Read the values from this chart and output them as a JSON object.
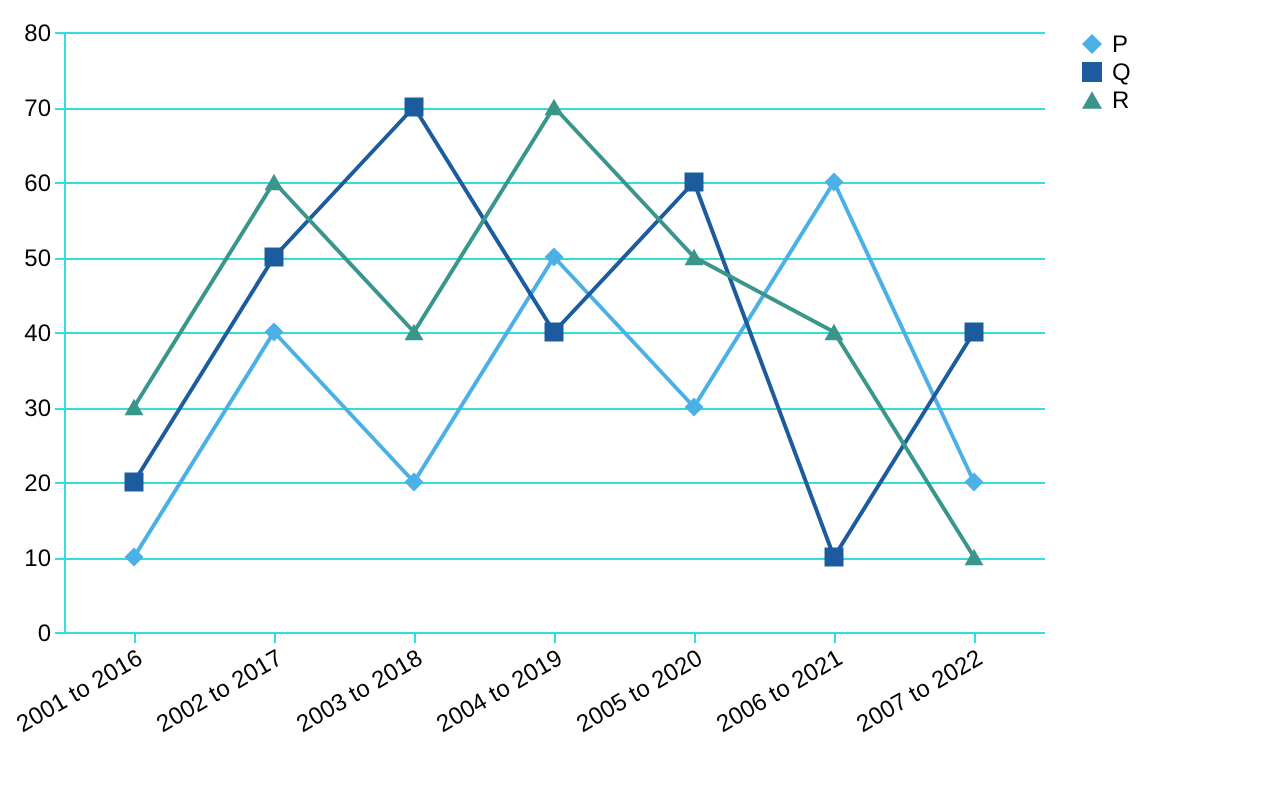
{
  "chart_data": {
    "type": "line",
    "categories": [
      "2001 to 2016",
      "2002 to 2017",
      "2003 to 2018",
      "2004 to 2019",
      "2005 to 2020",
      "2006 to 2021",
      "2007 to 2022"
    ],
    "series": [
      {
        "name": "P",
        "color": "#4bb0e6",
        "marker": "diamond",
        "values": [
          10,
          40,
          20,
          50,
          30,
          60,
          20
        ]
      },
      {
        "name": "Q",
        "color": "#1c5c9e",
        "marker": "square",
        "values": [
          20,
          50,
          70,
          40,
          60,
          10,
          40
        ]
      },
      {
        "name": "R",
        "color": "#3a968a",
        "marker": "triangle",
        "values": [
          30,
          60,
          40,
          70,
          50,
          40,
          10
        ]
      }
    ],
    "ylim": [
      0,
      80
    ],
    "yticks": [
      0,
      10,
      20,
      30,
      40,
      50,
      60,
      70,
      80
    ],
    "grid": "y",
    "legend": "right"
  }
}
